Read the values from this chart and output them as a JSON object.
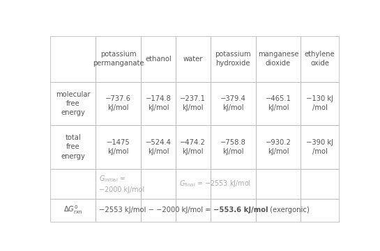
{
  "col_headers": [
    "potassium\npermanganate",
    "ethanol",
    "water",
    "potassium\nhydroxide",
    "manganese\ndioxide",
    "ethylene\noxide"
  ],
  "mol_free_energy": [
    "-737.6\nkJ/mol",
    "-174.8\nkJ/mol",
    "-237.1\nkJ/mol",
    "-379.4\nkJ/mol",
    "-465.1\nkJ/mol",
    "-130 kJ\n/mol"
  ],
  "total_free_energy": [
    "-1475\nkJ/mol",
    "-524.4\nkJ/mol",
    "-474.2\nkJ/mol",
    "-758.8\nkJ/mol",
    "-930.2\nkJ/mol",
    "-390 kJ\n/mol"
  ],
  "line_color": "#bbbbbb",
  "text_color": "#555555",
  "gray_text_color": "#aaaaaa",
  "bg_color": "#ffffff",
  "figsize": [
    5.45,
    3.61
  ],
  "dpi": 100,
  "minus": "−",
  "font_size": 7.2
}
